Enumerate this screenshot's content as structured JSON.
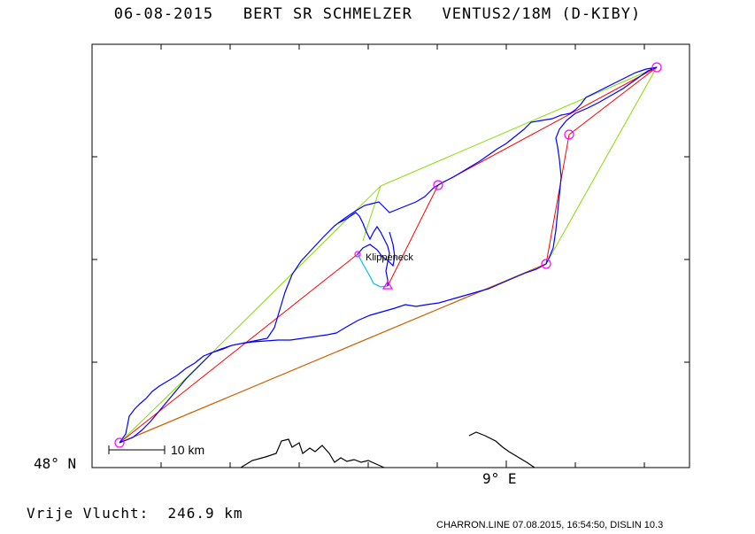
{
  "header": {
    "date": "06-08-2015",
    "pilot": "BERT SR SCHMELZER",
    "aircraft": "VENTUS2/18M (D-KIBY)"
  },
  "axes": {
    "lat_label": "48° N",
    "lon_label": "9° E"
  },
  "scale": {
    "label": "10 km"
  },
  "waypoint": {
    "name": "Klippeneck"
  },
  "flight": {
    "label": "Vrije Vlucht:",
    "distance": "246.9 km"
  },
  "footer": {
    "text": "CHARRON.LINE 07.08.2015, 16:54:50, DISLIN 10.3"
  },
  "colors": {
    "track": "#0000ff",
    "task": "#ff0000",
    "optimized": "#88dd00",
    "turnpoint": "#ff00ff",
    "cyan_segment": "#00c0e0",
    "border": "#000000"
  }
}
